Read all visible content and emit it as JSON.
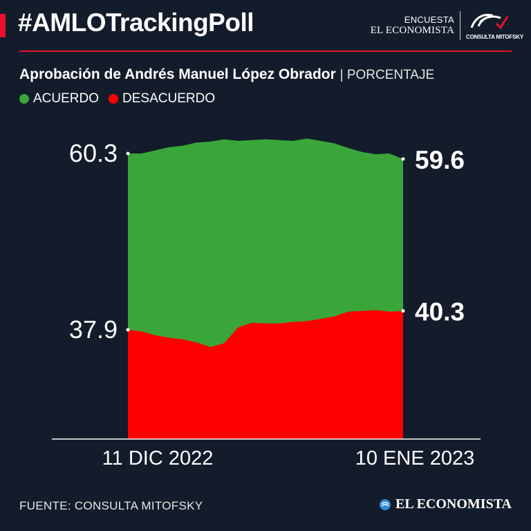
{
  "header": {
    "title": "#AMLOTrackingPoll",
    "brand_line1": "ENCUESTA",
    "brand_line2": "EL ECONOMISTA",
    "brand_logo_text": "CONSULTA MITOFSKY"
  },
  "subtitle": {
    "main": "Aprobación de Andrés Manuel López Obrador",
    "unit": "| PORCENTAJE"
  },
  "legend": [
    {
      "label": "ACUERDO",
      "color": "#3aa63a"
    },
    {
      "label": "DESACUERDO",
      "color": "#ff0000"
    }
  ],
  "chart_data": {
    "type": "area",
    "x_labels": [
      "11 DIC 2022",
      "10 ENE 2023"
    ],
    "series": [
      {
        "name": "ACUERDO",
        "color": "#3aa63a",
        "values": [
          60.3,
          60.3,
          60.7,
          61.1,
          61.3,
          61.7,
          61.8,
          62.1,
          61.9,
          62.0,
          62.1,
          62.0,
          61.9,
          62.2,
          61.9,
          61.6,
          61.0,
          60.5,
          60.2,
          60.3,
          59.6
        ],
        "start_label": "60.3",
        "end_label": "59.6"
      },
      {
        "name": "DESACUERDO",
        "color": "#ff0000",
        "values": [
          37.9,
          37.7,
          37.2,
          36.9,
          36.7,
          36.3,
          35.7,
          36.2,
          38.2,
          38.8,
          38.7,
          38.7,
          38.9,
          39.0,
          39.3,
          39.6,
          40.2,
          40.3,
          40.4,
          40.2,
          40.3
        ],
        "start_label": "37.9",
        "end_label": "40.3"
      }
    ],
    "grid": false,
    "legend_position": "top-left"
  },
  "footer": {
    "source": "FUENTE: CONSULTA MITOFSKY",
    "brand": "EL ECONOMISTA"
  }
}
